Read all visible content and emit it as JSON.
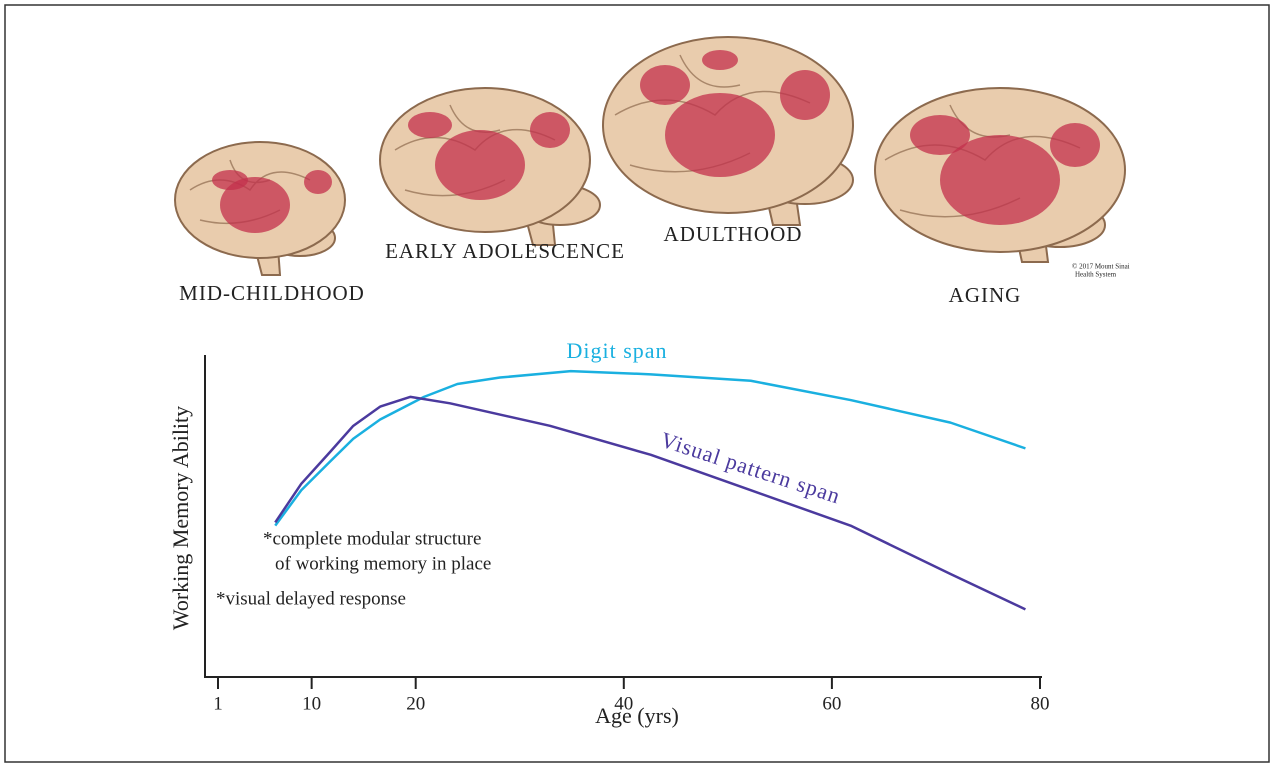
{
  "chart_data": {
    "type": "line",
    "x_label": "Age (yrs)",
    "y_label": "Working Memory Ability",
    "xlim": [
      0,
      80
    ],
    "xticks": [
      1,
      10,
      20,
      40,
      60,
      80
    ],
    "ylim": [
      0,
      10
    ],
    "series": [
      {
        "name": "Digit span",
        "color": "#1ab0e0",
        "x": [
          6.5,
          9,
          11.8,
          14,
          16.6,
          20.8,
          24,
          28.1,
          34.9,
          42.6,
          52.2,
          61.8,
          71.4,
          78.6
        ],
        "values": [
          4.7,
          5.8,
          6.7,
          7.4,
          8.0,
          8.7,
          9.1,
          9.3,
          9.5,
          9.4,
          9.2,
          8.6,
          7.9,
          7.1
        ]
      },
      {
        "name": "Visual pattern span",
        "color": "#4b3a9e",
        "x": [
          6.5,
          9,
          11.8,
          14,
          16.6,
          19.5,
          23.3,
          32.9,
          42.6,
          52.2,
          61.8,
          71.4,
          78.6
        ],
        "values": [
          4.8,
          6.0,
          7.0,
          7.8,
          8.4,
          8.7,
          8.5,
          7.8,
          6.9,
          5.8,
          4.7,
          3.2,
          2.1
        ]
      }
    ],
    "annotations": [
      [
        "*complete modular structure",
        "of working memory in place"
      ],
      [
        "*visual delayed response"
      ]
    ],
    "stages": [
      "MID-CHILDHOOD",
      "EARLY ADOLESCENCE",
      "ADULTHOOD",
      "AGING"
    ],
    "credit": [
      "© 2017 Mount Sinai",
      "Health System"
    ]
  }
}
